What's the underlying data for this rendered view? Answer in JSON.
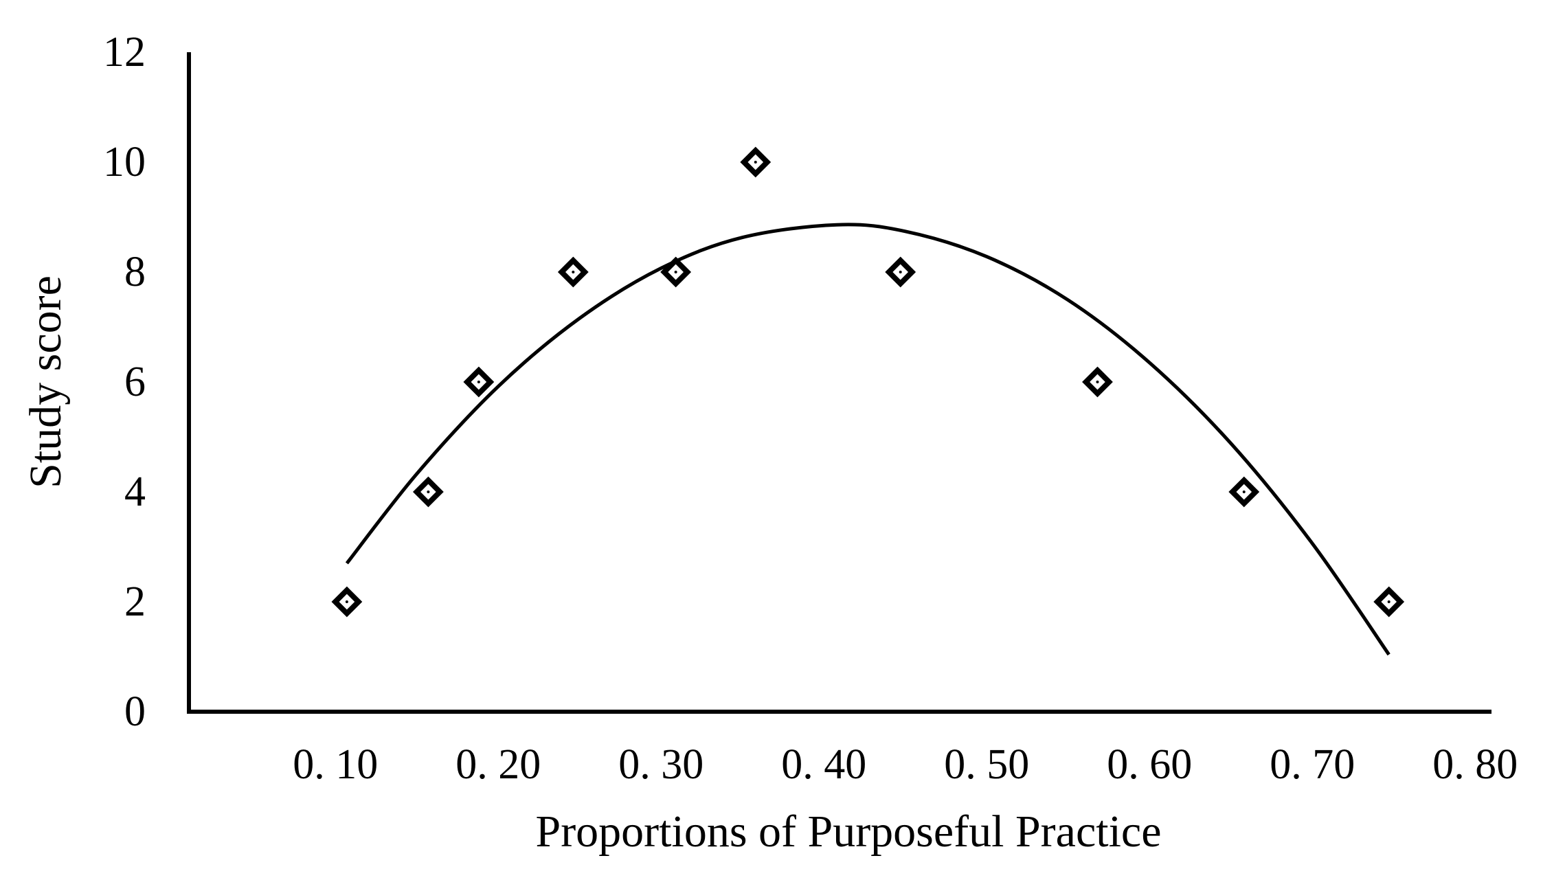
{
  "chart_data": {
    "type": "scatter",
    "x_label": "Proportions of Purposeful Practice",
    "y_label": "Study score",
    "x": [
      0.107,
      0.157,
      0.188,
      0.246,
      0.309,
      0.358,
      0.447,
      0.568,
      0.658,
      0.747
    ],
    "values": [
      2,
      4,
      6,
      8,
      8,
      10,
      8,
      6,
      4,
      2
    ],
    "color": "#000000",
    "trendline": {
      "x": [
        0.107,
        0.15,
        0.2,
        0.25,
        0.3,
        0.35,
        0.408,
        0.45,
        0.5,
        0.55,
        0.6,
        0.65,
        0.7,
        0.747
      ],
      "y": [
        2.7,
        4.33,
        5.92,
        7.16,
        8.07,
        8.63,
        8.86,
        8.74,
        8.28,
        7.49,
        6.35,
        4.88,
        3.06,
        1.04
      ],
      "color": "#000000"
    },
    "xlim": [
      0.01,
      0.81
    ],
    "ylim": [
      0,
      12
    ],
    "xticks": [
      {
        "value": 0.1,
        "label": "0. 10"
      },
      {
        "value": 0.2,
        "label": "0. 20"
      },
      {
        "value": 0.3,
        "label": "0. 30"
      },
      {
        "value": 0.4,
        "label": "0. 40"
      },
      {
        "value": 0.5,
        "label": "0. 50"
      },
      {
        "value": 0.6,
        "label": "0. 60"
      },
      {
        "value": 0.7,
        "label": "0. 70"
      },
      {
        "value": 0.8,
        "label": "0. 80"
      }
    ],
    "yticks": [
      0,
      2,
      4,
      6,
      8,
      10,
      12
    ],
    "grid": false
  }
}
